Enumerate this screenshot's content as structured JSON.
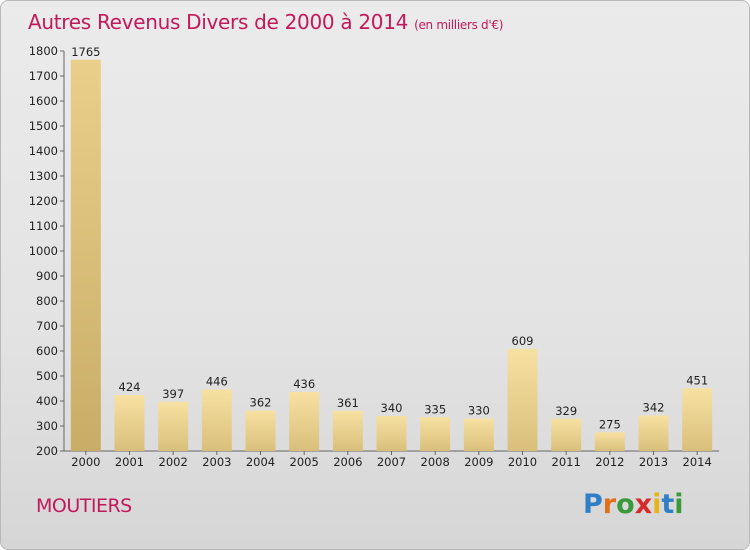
{
  "header": {
    "title": "Autres Revenus Divers de 2000 à 2014",
    "unit": "(en milliers d'€)"
  },
  "footer": {
    "place": "MOUTIERS",
    "logo_letters": [
      "P",
      "r",
      "o",
      "x",
      "i",
      "t",
      "i"
    ],
    "logo_colors": [
      "#2f7fc7",
      "#e0701c",
      "#3a9a3a",
      "#d62a2a",
      "#e8b316",
      "#2f7fc7",
      "#3a9a3a"
    ]
  },
  "chart_data": {
    "type": "bar",
    "title": "Autres Revenus Divers de 2000 à 2014",
    "subtitle": "(en milliers d'€)",
    "xlabel": "",
    "ylabel": "",
    "categories": [
      "2000",
      "2001",
      "2002",
      "2003",
      "2004",
      "2005",
      "2006",
      "2007",
      "2008",
      "2009",
      "2010",
      "2011",
      "2012",
      "2013",
      "2014"
    ],
    "values": [
      1765,
      424,
      397,
      446,
      362,
      436,
      361,
      340,
      335,
      330,
      609,
      329,
      275,
      342,
      451
    ],
    "ylim": [
      200,
      1800
    ],
    "yticks": [
      200,
      300,
      400,
      500,
      600,
      700,
      800,
      900,
      1000,
      1100,
      1200,
      1300,
      1400,
      1500,
      1600,
      1700,
      1800
    ],
    "grid": false,
    "legend": "none",
    "colors": {
      "bar_light": "#f7e1a2",
      "bar_dark": "#d9bf7b",
      "first_bar_light": "#e9cf8a",
      "first_bar_dark": "#c9ad67"
    }
  }
}
